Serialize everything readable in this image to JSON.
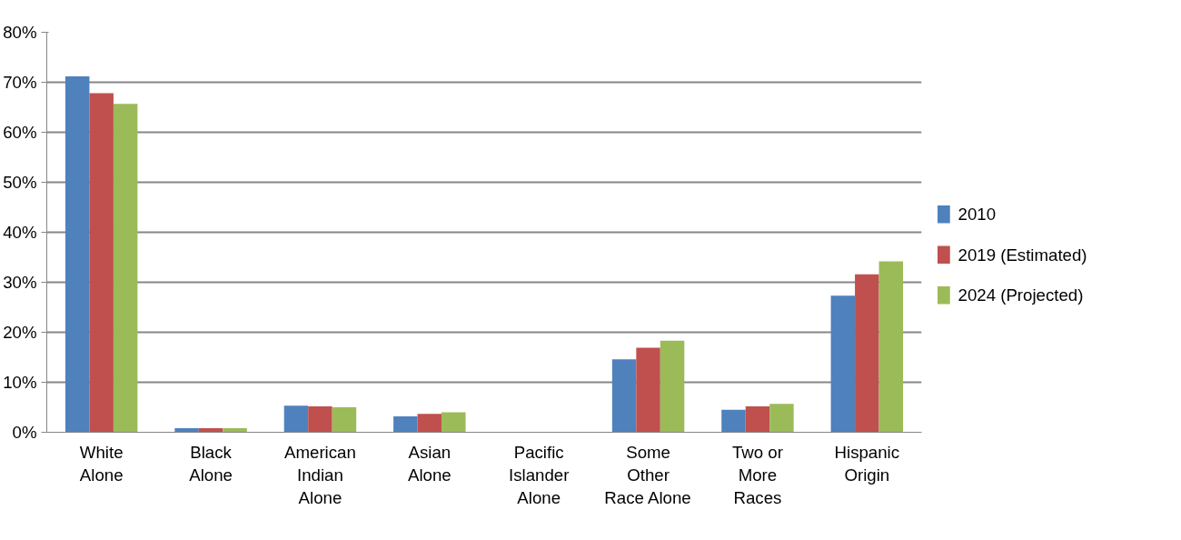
{
  "chart_data": {
    "type": "bar",
    "categories": [
      "White\nAlone",
      "Black\nAlone",
      "American\nIndian\nAlone",
      "Asian\nAlone",
      "Pacific\nIslander\nAlone",
      "Some\nOther\nRace Alone",
      "Two or\nMore\nRaces",
      "Hispanic\nOrigin"
    ],
    "series": [
      {
        "name": "2010",
        "color": "#4f81bd",
        "values": [
          71.2,
          0.8,
          5.3,
          3.2,
          0,
          14.6,
          4.5,
          27.3
        ]
      },
      {
        "name": "2019 (Estimated)",
        "color": "#c0504d",
        "values": [
          67.8,
          0.8,
          5.2,
          3.7,
          0,
          16.9,
          5.2,
          31.6
        ]
      },
      {
        "name": "2024 (Projected)",
        "color": "#9bbb59",
        "values": [
          65.7,
          0.8,
          5.0,
          4.0,
          0,
          18.3,
          5.7,
          34.2
        ]
      }
    ],
    "ylim": [
      0,
      80
    ],
    "yticks": [
      {
        "value": 0,
        "label": "0%"
      },
      {
        "value": 10,
        "label": "10%"
      },
      {
        "value": 20,
        "label": "20%"
      },
      {
        "value": 30,
        "label": "30%"
      },
      {
        "value": 40,
        "label": "40%"
      },
      {
        "value": 50,
        "label": "50%"
      },
      {
        "value": 60,
        "label": "60%"
      },
      {
        "value": 70,
        "label": "70%"
      },
      {
        "value": 80,
        "label": "80%"
      }
    ],
    "grid": "y",
    "legend": "right"
  }
}
